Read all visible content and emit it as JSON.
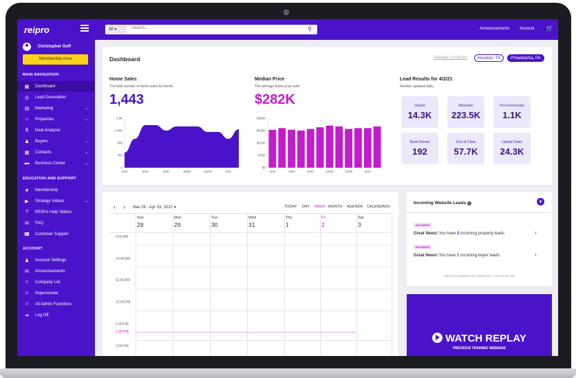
{
  "app": {
    "logo": "reipro"
  },
  "topbar": {
    "search_select": "All",
    "search_placeholder": "Search...",
    "announcements": "Announcements",
    "account": "Account"
  },
  "sidebar": {
    "user_name": "Christopher Goff",
    "membership_button": "Membership Area",
    "main_nav_title": "MAIN NAVIGATION",
    "main_items": [
      {
        "label": "Dashboard",
        "icon": "dashboard-icon"
      },
      {
        "label": "Lead Generation",
        "icon": "target-icon"
      },
      {
        "label": "Marketing",
        "icon": "marketing-icon"
      },
      {
        "label": "Properties",
        "icon": "home-icon"
      },
      {
        "label": "Deal Analyzer",
        "icon": "dollar-icon"
      },
      {
        "label": "Buyers",
        "icon": "person-icon"
      },
      {
        "label": "Contacts",
        "icon": "contacts-icon"
      },
      {
        "label": "Business Center",
        "icon": "briefcase-icon"
      }
    ],
    "edu_title": "EDUCATION AND SUPPORT",
    "edu_items": [
      {
        "label": "Membership",
        "icon": "star-icon"
      },
      {
        "label": "Strategy Videos",
        "icon": "play-icon"
      },
      {
        "label": "REIPro Help Videos",
        "icon": "question-icon"
      },
      {
        "label": "FAQ",
        "icon": "chat-icon"
      },
      {
        "label": "Customer Support",
        "icon": "phone-icon"
      }
    ],
    "account_title": "ACCOUNT",
    "account_items": [
      {
        "label": "Account Settings",
        "icon": "user-settings-icon"
      },
      {
        "label": "Announcements",
        "icon": "megaphone-icon"
      },
      {
        "label": "Company List",
        "icon": "group-icon"
      },
      {
        "label": "Impersonate",
        "icon": "group-icon"
      },
      {
        "label": "All Admin Functions",
        "icon": "group-icon"
      },
      {
        "label": "Log Off",
        "icon": "logout-icon"
      }
    ]
  },
  "dashboard": {
    "title": "Dashboard",
    "manage_locations": "Manage Locations",
    "locations": [
      "Houston, TX",
      "Philadelphia, PA"
    ],
    "home_sales": {
      "title": "Home Sales",
      "subtitle": "The total number of home sales by month.",
      "value": "1,443"
    },
    "median_price": {
      "title": "Median Price",
      "subtitle": "The average home price sold.",
      "value": "$282K"
    },
    "lead_results": {
      "title": "Lead Results for 4/2/21",
      "subtitle": "Number updated daily.",
      "tiles": [
        {
          "label": "Vacant",
          "value": "14.3K"
        },
        {
          "label": "Absentee",
          "value": "223.5K"
        },
        {
          "label": "Pre-Foreclosure",
          "value": "1.1K"
        },
        {
          "label": "Bank Owned",
          "value": "192"
        },
        {
          "label": "Free & Clear",
          "value": "57.7K"
        },
        {
          "label": "Upside Down",
          "value": "24.3K"
        }
      ]
    }
  },
  "chart_data": [
    {
      "type": "area",
      "title": "Home Sales",
      "x": [
        "4/20",
        "5/20",
        "6/20",
        "7/20",
        "8/20",
        "9/20",
        "10/20",
        "11/20",
        "12/20",
        "1/21",
        "2/21",
        "3/21"
      ],
      "values": [
        550,
        1050,
        1550,
        1550,
        1350,
        1500,
        1500,
        1500,
        1300,
        1300,
        1050,
        1400
      ],
      "yticks": [
        "0",
        "450",
        "900",
        "1.35K",
        "1.8K"
      ],
      "xticks": [
        "4/20",
        "6/20",
        "8/20",
        "10/20",
        "12/20",
        "2/21"
      ],
      "ylim": [
        0,
        1800
      ],
      "color": "#4a12c9"
    },
    {
      "type": "bar",
      "title": "Median Price",
      "x": [
        "4/20",
        "5/20",
        "6/20",
        "7/20",
        "8/20",
        "9/20",
        "10/20",
        "11/20",
        "12/20",
        "1/21",
        "2/21",
        "3/21"
      ],
      "values": [
        230,
        240,
        230,
        225,
        235,
        245,
        255,
        250,
        235,
        240,
        240,
        250
      ],
      "yticks": [
        "$0",
        "$75K",
        "$150K",
        "$225K",
        "$300K"
      ],
      "xticks": [
        "4/20",
        "6/20",
        "8/20",
        "10/20",
        "12/20",
        "2/21"
      ],
      "ylim": [
        0,
        300
      ],
      "color": "#c21ccc"
    }
  ],
  "calendar": {
    "range": "Mar 28 - Apr 03, 2021",
    "today": "TODAY",
    "views": [
      "DAY",
      "WEEK",
      "MONTH",
      "AGENDA",
      "CALENDARS"
    ],
    "days": [
      {
        "name": "Sun",
        "num": "28"
      },
      {
        "name": "Mon",
        "num": "29"
      },
      {
        "name": "Tue",
        "num": "30"
      },
      {
        "name": "Wed",
        "num": "31"
      },
      {
        "name": "Thu",
        "num": "1"
      },
      {
        "name": "Fri",
        "num": "2"
      },
      {
        "name": "Sat",
        "num": "3"
      }
    ],
    "times": [
      "9:00 AM",
      "10:00 AM",
      "11:00 AM",
      "12:00 PM",
      "1:00 PM",
      "2:00 PM"
    ],
    "now_time": "1:35 PM"
  },
  "leads": {
    "title": "Incoming Website Leads",
    "items": [
      {
        "badge": "INCOMING",
        "lead_prefix": "Great News!",
        "text_before": " You have ",
        "count": "2",
        "text_after": " incoming property leads."
      },
      {
        "badge": "INCOMING",
        "lead_prefix": "Great News!",
        "text_before": " You have ",
        "count": "1",
        "text_after": " incoming buyer leads."
      }
    ],
    "footer": "Add new integration by clicking the + icon at the top."
  },
  "replay": {
    "title": "WATCH REPLAY",
    "subtitle": "PREVIOUS TRAINING WEBINAR"
  }
}
